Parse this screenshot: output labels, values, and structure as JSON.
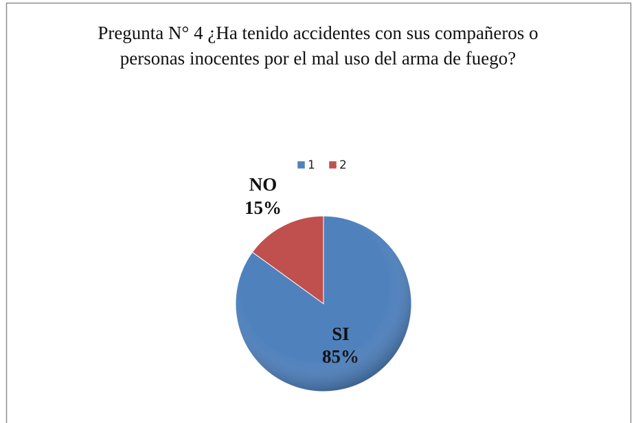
{
  "chart_data": {
    "type": "pie",
    "title": "Pregunta N° 4 ¿Ha tenido accidentes con sus compañeros o personas inocentes por el mal uso del arma de fuego?",
    "categories": [
      "1",
      "2"
    ],
    "values": [
      85,
      15
    ],
    "value_labels": [
      "85%",
      "15%"
    ],
    "slice_labels": [
      "SI",
      "NO"
    ],
    "colors": [
      "#4f81bd",
      "#c0504d"
    ],
    "legend": "top"
  }
}
